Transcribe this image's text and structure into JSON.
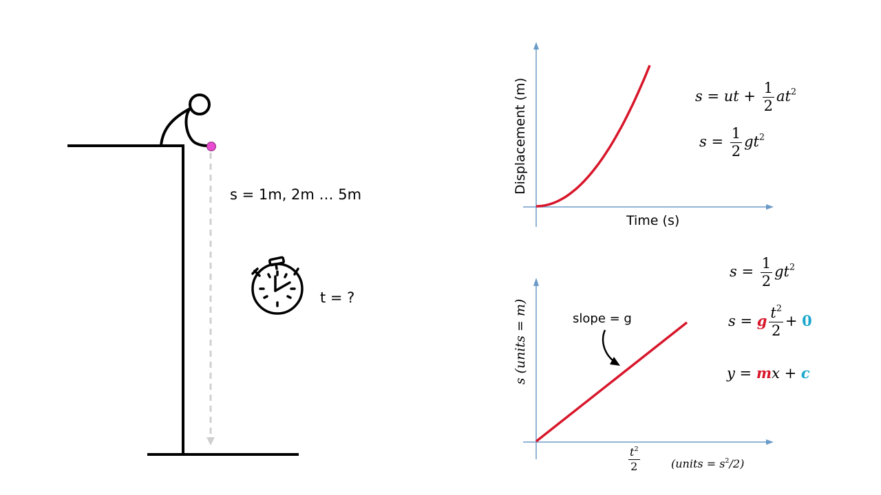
{
  "left_scene": {
    "height_label": "s = 1m, 2m … 5m",
    "time_label": "t = ?"
  },
  "top_graph": {
    "x_label": "Time (s)",
    "y_label": "Displacement   (m)",
    "eq1": {
      "lhs": "s",
      "a": "ut",
      "frac_num": "1",
      "frac_den": "2",
      "b": "at",
      "exp": "2"
    },
    "eq2": {
      "lhs": "s",
      "frac_num": "1",
      "frac_den": "2",
      "b": "gt",
      "exp": "2"
    }
  },
  "bottom_graph": {
    "y_label": "s (units  =  m)",
    "x_label_num": "t",
    "x_label_exp": "2",
    "x_label_den": "2",
    "x_units": "(units =  s",
    "x_units_exp": "2",
    "x_units_tail": "/2)",
    "slope_label": "slope = g",
    "eq1": {
      "lhs": "s",
      "frac_num": "1",
      "frac_den": "2",
      "b": "gt",
      "exp": "2"
    },
    "eq2": {
      "lhs": "s",
      "g": "g",
      "frac_num": "t",
      "frac_exp": "2",
      "frac_den": "2",
      "c": "0"
    },
    "eq3": {
      "lhs": "y",
      "m": "m",
      "x": "x",
      "c": "c"
    }
  },
  "colors": {
    "curve": "#d8162a",
    "axis": "#6a9bc7",
    "ball": "#e84bcf",
    "constant": "#1aa7cc"
  },
  "chart_data": [
    {
      "type": "line",
      "title": "",
      "xlabel": "Time (s)",
      "ylabel": "Displacement   (m)",
      "series": [
        {
          "x": [
            0,
            0.25,
            0.5,
            0.75,
            1
          ],
          "y": [
            0,
            0.0625,
            0.25,
            0.5625,
            1
          ]
        }
      ]
    },
    {
      "type": "line",
      "title": "",
      "xlabel": "t²/2",
      "ylabel": "s (units = m)",
      "annotations": [
        "slope = g"
      ],
      "series": [
        {
          "x": [
            0,
            1
          ],
          "y": [
            0,
            1
          ]
        }
      ]
    }
  ]
}
